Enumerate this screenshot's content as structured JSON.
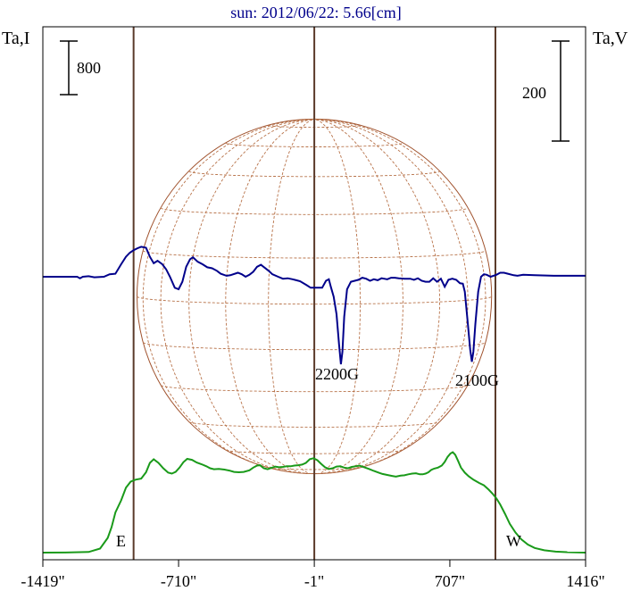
{
  "chart_data": {
    "type": "line",
    "title": "sun: 2012/06/22: 5.66[cm]",
    "left_axis_label": "Ta,I",
    "right_axis_label": "Ta,V",
    "x_tick_labels": [
      "-1419\"",
      "-710\"",
      "-1\"",
      "707\"",
      "1416\""
    ],
    "x_ticks": [
      -1419,
      -710,
      -1,
      707,
      1416
    ],
    "xlim": [
      -1419,
      1416
    ],
    "scale_bar_I": "800",
    "scale_bar_V": "200",
    "limb_labels": {
      "east": "E",
      "west": "W"
    },
    "limb_positions": [
      -945,
      945
    ],
    "annotations": [
      {
        "text": "2200G",
        "x": 140
      },
      {
        "text": "2100G",
        "x": 885
      }
    ],
    "series": [
      {
        "id": "stokes-i",
        "color": "#1a9a1a",
        "points": [
          [
            -1419,
            0
          ],
          [
            -1300,
            2
          ],
          [
            -1180,
            10
          ],
          [
            -1120,
            60
          ],
          [
            -1080,
            220
          ],
          [
            -1060,
            380
          ],
          [
            -1040,
            600
          ],
          [
            -1010,
            780
          ],
          [
            -985,
            970
          ],
          [
            -960,
            1060
          ],
          [
            -935,
            1090
          ],
          [
            -905,
            1105
          ],
          [
            -880,
            1200
          ],
          [
            -860,
            1340
          ],
          [
            -840,
            1395
          ],
          [
            -815,
            1340
          ],
          [
            -790,
            1260
          ],
          [
            -765,
            1195
          ],
          [
            -745,
            1180
          ],
          [
            -725,
            1205
          ],
          [
            -705,
            1270
          ],
          [
            -685,
            1350
          ],
          [
            -665,
            1400
          ],
          [
            -640,
            1385
          ],
          [
            -615,
            1345
          ],
          [
            -590,
            1320
          ],
          [
            -565,
            1290
          ],
          [
            -545,
            1260
          ],
          [
            -525,
            1245
          ],
          [
            -500,
            1250
          ],
          [
            -470,
            1240
          ],
          [
            -445,
            1225
          ],
          [
            -420,
            1205
          ],
          [
            -395,
            1200
          ],
          [
            -370,
            1205
          ],
          [
            -340,
            1230
          ],
          [
            -320,
            1270
          ],
          [
            -300,
            1300
          ],
          [
            -285,
            1305
          ],
          [
            -265,
            1260
          ],
          [
            -245,
            1245
          ],
          [
            -225,
            1265
          ],
          [
            -205,
            1285
          ],
          [
            -185,
            1275
          ],
          [
            -165,
            1280
          ],
          [
            -145,
            1290
          ],
          [
            -125,
            1290
          ],
          [
            -105,
            1300
          ],
          [
            -85,
            1305
          ],
          [
            -65,
            1315
          ],
          [
            -45,
            1340
          ],
          [
            -25,
            1395
          ],
          [
            -5,
            1410
          ],
          [
            15,
            1380
          ],
          [
            35,
            1325
          ],
          [
            55,
            1275
          ],
          [
            75,
            1250
          ],
          [
            95,
            1260
          ],
          [
            115,
            1285
          ],
          [
            135,
            1290
          ],
          [
            155,
            1270
          ],
          [
            175,
            1260
          ],
          [
            195,
            1280
          ],
          [
            215,
            1290
          ],
          [
            235,
            1300
          ],
          [
            260,
            1275
          ],
          [
            285,
            1250
          ],
          [
            310,
            1220
          ],
          [
            335,
            1195
          ],
          [
            355,
            1175
          ],
          [
            380,
            1160
          ],
          [
            405,
            1145
          ],
          [
            425,
            1135
          ],
          [
            450,
            1150
          ],
          [
            470,
            1155
          ],
          [
            490,
            1170
          ],
          [
            510,
            1180
          ],
          [
            530,
            1185
          ],
          [
            550,
            1170
          ],
          [
            565,
            1170
          ],
          [
            580,
            1180
          ],
          [
            595,
            1200
          ],
          [
            610,
            1235
          ],
          [
            625,
            1255
          ],
          [
            645,
            1270
          ],
          [
            665,
            1300
          ],
          [
            680,
            1355
          ],
          [
            695,
            1430
          ],
          [
            710,
            1480
          ],
          [
            722,
            1500
          ],
          [
            735,
            1460
          ],
          [
            750,
            1370
          ],
          [
            765,
            1270
          ],
          [
            785,
            1195
          ],
          [
            805,
            1140
          ],
          [
            830,
            1090
          ],
          [
            860,
            1040
          ],
          [
            885,
            1005
          ],
          [
            910,
            940
          ],
          [
            930,
            880
          ],
          [
            950,
            810
          ],
          [
            970,
            720
          ],
          [
            995,
            580
          ],
          [
            1020,
            430
          ],
          [
            1050,
            300
          ],
          [
            1080,
            200
          ],
          [
            1115,
            120
          ],
          [
            1150,
            70
          ],
          [
            1200,
            35
          ],
          [
            1260,
            15
          ],
          [
            1320,
            6
          ],
          [
            1416,
            0
          ]
        ]
      },
      {
        "id": "stokes-v",
        "color": "#00008b",
        "points": [
          [
            -1419,
            0
          ],
          [
            -1240,
            0
          ],
          [
            -1225,
            -3
          ],
          [
            -1210,
            0
          ],
          [
            -1180,
            1
          ],
          [
            -1150,
            -1
          ],
          [
            -1100,
            0
          ],
          [
            -1070,
            5
          ],
          [
            -1040,
            6
          ],
          [
            -1010,
            25
          ],
          [
            -985,
            40
          ],
          [
            -965,
            48
          ],
          [
            -945,
            53
          ],
          [
            -925,
            57
          ],
          [
            -905,
            60
          ],
          [
            -880,
            58
          ],
          [
            -860,
            40
          ],
          [
            -840,
            27
          ],
          [
            -820,
            32
          ],
          [
            -795,
            25
          ],
          [
            -775,
            15
          ],
          [
            -755,
            0
          ],
          [
            -730,
            -22
          ],
          [
            -710,
            -25
          ],
          [
            -690,
            -10
          ],
          [
            -670,
            20
          ],
          [
            -650,
            35
          ],
          [
            -635,
            39
          ],
          [
            -610,
            30
          ],
          [
            -585,
            25
          ],
          [
            -560,
            19
          ],
          [
            -535,
            17
          ],
          [
            -510,
            12
          ],
          [
            -490,
            6
          ],
          [
            -460,
            2
          ],
          [
            -440,
            3
          ],
          [
            -400,
            8
          ],
          [
            -380,
            5
          ],
          [
            -360,
            0
          ],
          [
            -340,
            4
          ],
          [
            -320,
            10
          ],
          [
            -300,
            20
          ],
          [
            -280,
            24
          ],
          [
            -260,
            18
          ],
          [
            -240,
            12
          ],
          [
            -220,
            5
          ],
          [
            -190,
            0
          ],
          [
            -165,
            -4
          ],
          [
            -140,
            -3
          ],
          [
            -115,
            -5
          ],
          [
            -95,
            -7
          ],
          [
            -75,
            -9
          ],
          [
            -40,
            -17
          ],
          [
            -20,
            -22
          ],
          [
            0,
            -22
          ],
          [
            40,
            -22
          ],
          [
            60,
            -8
          ],
          [
            75,
            -5
          ],
          [
            85,
            -20
          ],
          [
            100,
            -40
          ],
          [
            115,
            -75
          ],
          [
            128,
            -135
          ],
          [
            138,
            -175
          ],
          [
            146,
            -150
          ],
          [
            155,
            -80
          ],
          [
            170,
            -25
          ],
          [
            190,
            -10
          ],
          [
            210,
            -8
          ],
          [
            230,
            -6
          ],
          [
            250,
            -2
          ],
          [
            270,
            -4
          ],
          [
            290,
            -8
          ],
          [
            310,
            -5
          ],
          [
            330,
            -7
          ],
          [
            350,
            -3
          ],
          [
            380,
            -5
          ],
          [
            400,
            -2
          ],
          [
            420,
            -2
          ],
          [
            440,
            -3
          ],
          [
            470,
            -4
          ],
          [
            500,
            -4
          ],
          [
            520,
            -6
          ],
          [
            540,
            -3
          ],
          [
            560,
            -8
          ],
          [
            580,
            -10
          ],
          [
            600,
            -10
          ],
          [
            620,
            -3
          ],
          [
            640,
            -10
          ],
          [
            660,
            -4
          ],
          [
            680,
            -20
          ],
          [
            700,
            -6
          ],
          [
            720,
            -4
          ],
          [
            740,
            -6
          ],
          [
            760,
            -13
          ],
          [
            775,
            -14
          ],
          [
            785,
            -30
          ],
          [
            800,
            -90
          ],
          [
            813,
            -145
          ],
          [
            822,
            -170
          ],
          [
            830,
            -150
          ],
          [
            840,
            -95
          ],
          [
            855,
            -30
          ],
          [
            870,
            0
          ],
          [
            885,
            5
          ],
          [
            900,
            4
          ],
          [
            920,
            0
          ],
          [
            950,
            4
          ],
          [
            970,
            8
          ],
          [
            990,
            8
          ],
          [
            1010,
            6
          ],
          [
            1040,
            3
          ],
          [
            1060,
            2
          ],
          [
            1090,
            4
          ],
          [
            1150,
            3
          ],
          [
            1250,
            2
          ],
          [
            1416,
            2
          ]
        ]
      }
    ]
  }
}
